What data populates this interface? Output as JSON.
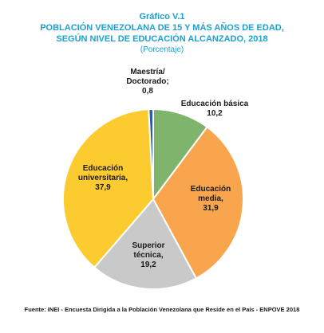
{
  "figure_label": "Gráfico V.1",
  "title_lines": [
    "POBLACIÓN VENEZOLANA DE 15 Y MÁS AÑOS DE EDAD,",
    "SEGÚN NIVEL DE EDUCACIÓN ALCANZADO, 2018"
  ],
  "unit": "(Porcentaje)",
  "source": "Fuente: INEI - Encuesta Dirigida a la Población Venezolana que Reside en el País - ENPOVE 2018",
  "chart_data": {
    "type": "pie",
    "title": "POBLACIÓN VENEZOLANA DE 15 Y MÁS AÑOS DE EDAD, SEGÚN NIVEL DE EDUCACIÓN ALCANZADO, 2018",
    "start": "12 o'clock, clockwise",
    "slices": [
      {
        "label": "Educación básica",
        "value": 10.2,
        "value_text": "10,2",
        "color": "#7fb46d",
        "label_lines": [
          "Educación básica",
          "10,2"
        ]
      },
      {
        "label": "Educación media",
        "value": 31.9,
        "value_text": "31,9",
        "color": "#f8a54d",
        "label_lines": [
          "Educación",
          "media,",
          "31,9"
        ]
      },
      {
        "label": "Superior técnica",
        "value": 19.2,
        "value_text": "19,2",
        "color": "#c9c9c9",
        "label_lines": [
          "Superior",
          "técnica,",
          "19,2"
        ]
      },
      {
        "label": "Educación universitaria",
        "value": 37.9,
        "value_text": "37,9",
        "color": "#fccb2f",
        "label_lines": [
          "Educación",
          "universitaria,",
          "37,9"
        ]
      },
      {
        "label": "Maestría/ Doctorado",
        "value": 0.8,
        "value_text": "0,8",
        "color": "#2e5aa8",
        "label_lines": [
          "Maestría/",
          "Doctorado;",
          "0,8"
        ]
      }
    ]
  }
}
